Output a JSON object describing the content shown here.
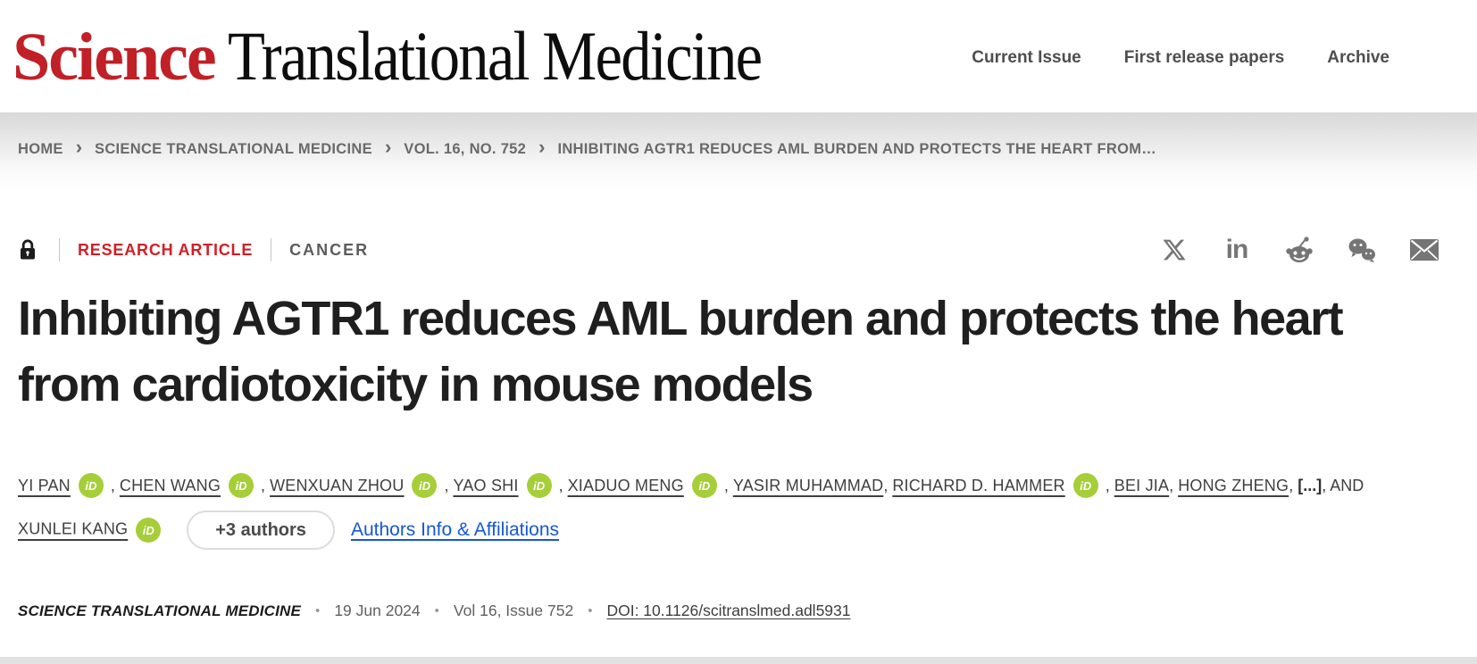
{
  "header": {
    "logo_science": "Science",
    "logo_rest": "Translational Medicine",
    "nav": [
      {
        "label": "Current Issue"
      },
      {
        "label": "First release papers"
      },
      {
        "label": "Archive"
      }
    ]
  },
  "breadcrumb": {
    "items": [
      "HOME",
      "SCIENCE TRANSLATIONAL MEDICINE",
      "VOL. 16, NO. 752",
      "INHIBITING AGTR1 REDUCES AML BURDEN AND PROTECTS THE HEART FROM…"
    ],
    "separator": "›"
  },
  "article": {
    "type_label": "RESEARCH ARTICLE",
    "category_label": "CANCER",
    "title": "Inhibiting AGTR1 reduces AML burden and protects the heart from cardiotoxicity in mouse models"
  },
  "share": {
    "icons": [
      "x-twitter-icon",
      "linkedin-icon",
      "reddit-icon",
      "wechat-icon",
      "email-icon"
    ],
    "linkedin_glyph": "in"
  },
  "authors": {
    "orcid_text": "iD",
    "line1": [
      {
        "name": "YI PAN",
        "orcid": true,
        "sep": " , "
      },
      {
        "name": "CHEN WANG",
        "orcid": true,
        "sep": " , "
      },
      {
        "name": "WENXUAN ZHOU",
        "orcid": true,
        "sep": " , "
      },
      {
        "name": "YAO SHI",
        "orcid": true,
        "sep": " , "
      },
      {
        "name": "XIADUO MENG",
        "orcid": true,
        "sep": " , "
      },
      {
        "name": "YASIR MUHAMMAD",
        "orcid": false,
        "sep": ", "
      },
      {
        "name": "RICHARD D. HAMMER",
        "orcid": true,
        "sep": " , "
      },
      {
        "name": "BEI JIA",
        "orcid": false,
        "sep": ", "
      },
      {
        "name": "HONG ZHENG",
        "orcid": false,
        "sep": ", "
      }
    ],
    "ellipsis": "[...]",
    "and_text": ", AND",
    "line2": [
      {
        "name": "XUNLEI KANG",
        "orcid": true,
        "sep": ""
      }
    ],
    "more_button": "+3 authors",
    "info_link": "Authors Info & Affiliations"
  },
  "pubmeta": {
    "journal": "SCIENCE TRANSLATIONAL MEDICINE",
    "dot": "•",
    "date": "19 Jun 2024",
    "volume": "Vol 16, Issue 752",
    "doi": "DOI: 10.1126/scitranslmed.adl5931"
  },
  "colors": {
    "science_red": "#c02026",
    "article_red": "#d21f26",
    "orcid_green": "#a6ce39",
    "link_blue": "#1558d6"
  }
}
